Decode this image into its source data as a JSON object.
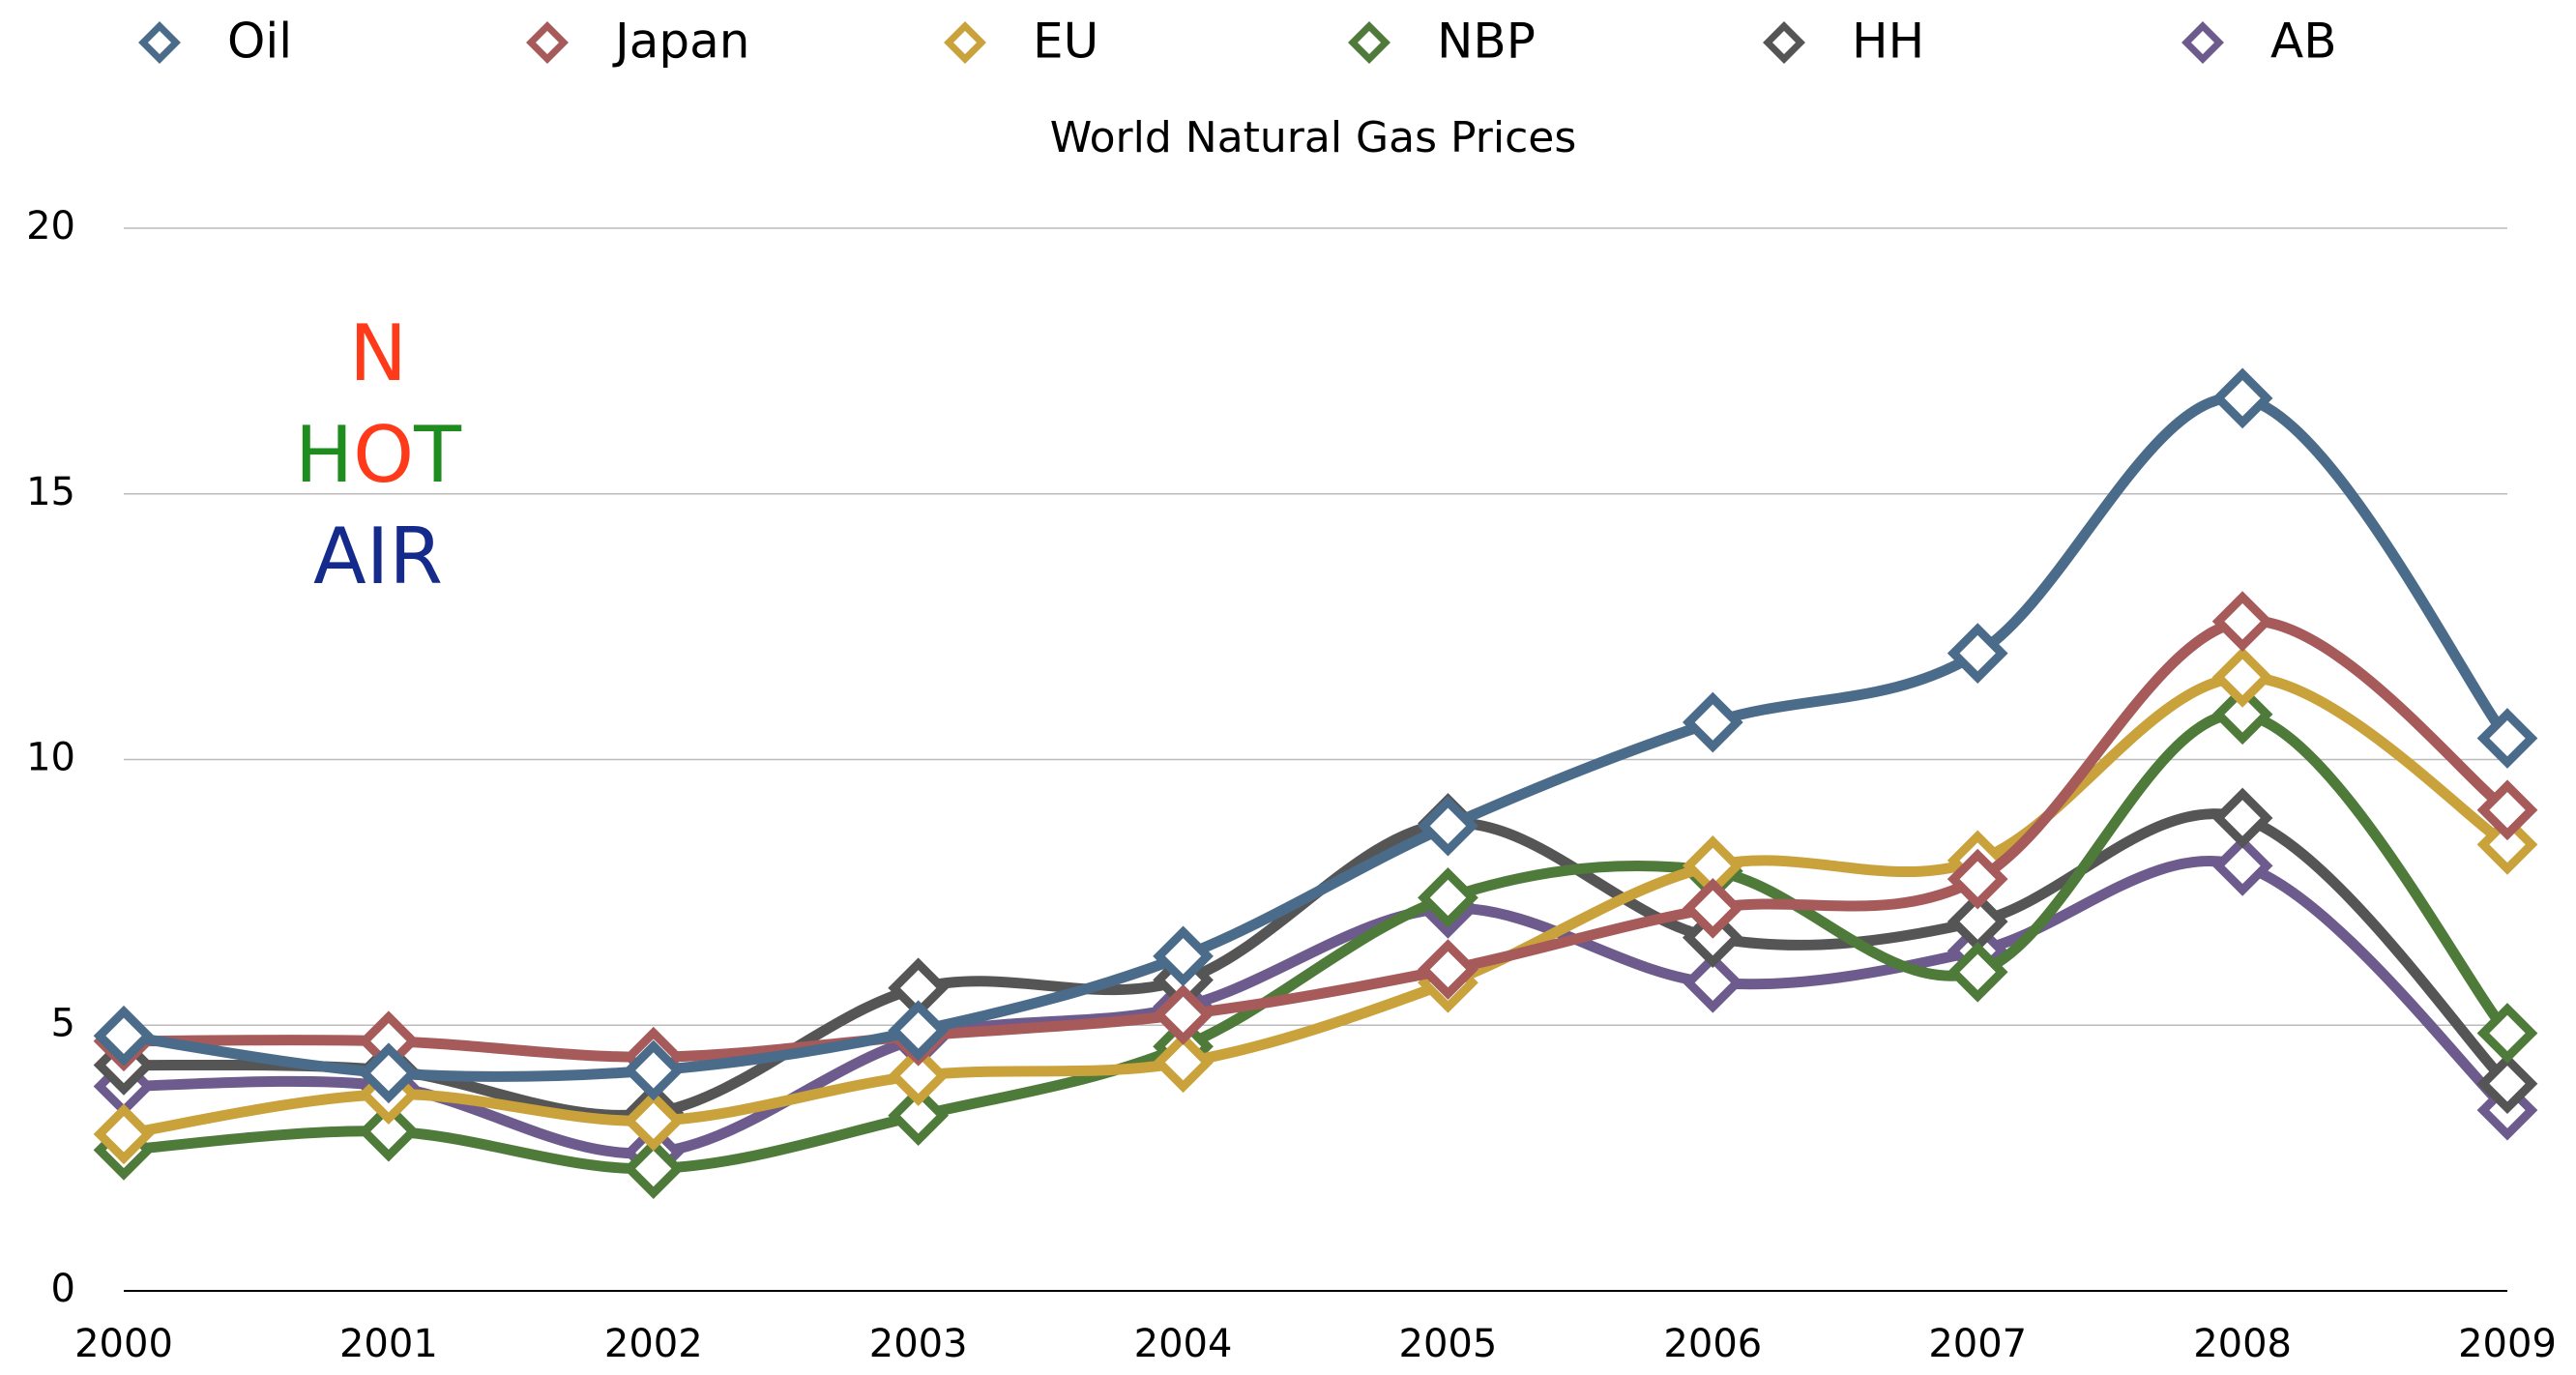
{
  "chart_data": {
    "type": "line",
    "title": "World Natural Gas Prices",
    "categories": [
      "2000",
      "2001",
      "2002",
      "2003",
      "2004",
      "2005",
      "2006",
      "2007",
      "2008",
      "2009"
    ],
    "series": [
      {
        "name": "Oil",
        "color": "#4a6b8a",
        "values": [
          4.8,
          4.1,
          4.15,
          4.9,
          6.3,
          8.75,
          10.7,
          12.0,
          16.8,
          10.4
        ]
      },
      {
        "name": "Japan",
        "color": "#a65a5a",
        "values": [
          4.7,
          4.7,
          4.4,
          4.8,
          5.2,
          6.05,
          7.2,
          7.75,
          12.6,
          9.05
        ]
      },
      {
        "name": "EU",
        "color": "#c9a23b",
        "values": [
          2.95,
          3.7,
          3.2,
          4.05,
          4.3,
          5.8,
          8.0,
          8.1,
          11.55,
          8.4
        ]
      },
      {
        "name": "NBP",
        "color": "#4e7a3a",
        "values": [
          2.65,
          3.0,
          2.3,
          3.3,
          4.6,
          7.4,
          7.9,
          6.0,
          10.85,
          4.85
        ]
      },
      {
        "name": "HH",
        "color": "#555555",
        "values": [
          4.25,
          4.15,
          3.35,
          5.7,
          5.85,
          8.8,
          6.65,
          6.95,
          8.9,
          3.9
        ]
      },
      {
        "name": "AB",
        "color": "#6c5b8c",
        "values": [
          3.85,
          3.85,
          2.6,
          4.75,
          5.35,
          7.2,
          5.8,
          6.4,
          8.0,
          3.4
        ]
      }
    ],
    "ylim": [
      0,
      20
    ],
    "yticks": [
      0,
      5,
      10,
      15,
      20
    ],
    "grid": true,
    "legend": "top",
    "annotations": [
      [
        "N"
      ],
      [
        "H",
        "O",
        "T"
      ],
      [
        "AIR"
      ]
    ]
  }
}
